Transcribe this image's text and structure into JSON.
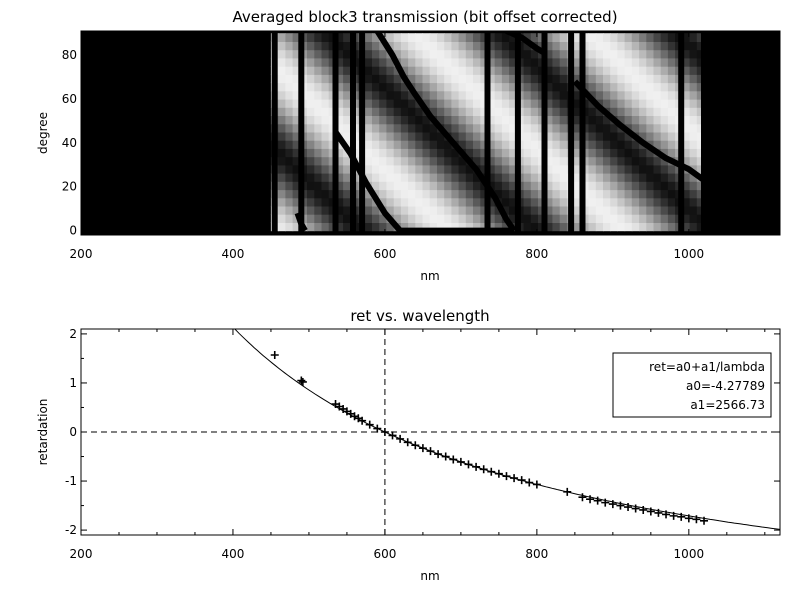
{
  "chart_data": [
    {
      "type": "heatmap",
      "title": "Averaged block3 transmission (bit offset corrected)",
      "xlabel": "nm",
      "ylabel": "degree",
      "xlim": [
        200,
        1120
      ],
      "ylim": [
        -2,
        91
      ],
      "x_ticks": [
        200,
        400,
        600,
        800,
        1000
      ],
      "y_ticks": [
        0,
        20,
        40,
        60,
        80
      ],
      "colormap": "grayscale",
      "data_wavelength_range": [
        450,
        1020
      ],
      "dark_band_positions_nm": [
        455,
        490,
        535,
        558,
        570,
        735,
        775,
        810,
        845,
        860,
        990,
        1020
      ],
      "fringe_tracks": [
        {
          "x": [
            535,
            555,
            575,
            600,
            620,
            645,
            670,
            700,
            730,
            770
          ],
          "y": [
            45,
            35,
            22,
            8,
            0,
            0,
            0,
            0,
            0,
            0
          ]
        },
        {
          "x": [
            590,
            610,
            625,
            640,
            660,
            690,
            720,
            745,
            760,
            770
          ],
          "y": [
            91,
            80,
            70,
            62,
            52,
            40,
            28,
            15,
            5,
            0
          ]
        },
        {
          "x": [
            760,
            780,
            800,
            810
          ],
          "y": [
            91,
            88,
            83,
            81
          ]
        },
        {
          "x": [
            850,
            880,
            910,
            940,
            970,
            1000,
            1020
          ],
          "y": [
            68,
            57,
            48,
            40,
            33,
            28,
            23
          ]
        },
        {
          "x": [
            485,
            490,
            495
          ],
          "y": [
            8,
            3,
            0
          ]
        }
      ]
    },
    {
      "type": "scatter",
      "title": "ret vs. wavelength",
      "xlabel": "nm",
      "ylabel": "retardation",
      "xlim": [
        200,
        1120
      ],
      "ylim": [
        -2.1,
        2.1
      ],
      "x_ticks": [
        200,
        400,
        600,
        800,
        1000
      ],
      "y_ticks": [
        -2,
        -1,
        0,
        1,
        2
      ],
      "reference_lines": {
        "y": 0,
        "x": 600
      },
      "fit": {
        "a0": -4.27789,
        "a1": 2566.73
      },
      "legend": {
        "lines": [
          "ret=a0+a1/lambda",
          "a0=-4.27789",
          "a1=2566.73"
        ],
        "placement": "top-right"
      },
      "points": {
        "x": [
          455,
          490,
          492,
          535,
          540,
          545,
          550,
          555,
          560,
          565,
          570,
          580,
          590,
          600,
          610,
          620,
          630,
          640,
          650,
          660,
          670,
          680,
          690,
          700,
          710,
          720,
          730,
          740,
          750,
          760,
          770,
          780,
          790,
          800,
          840,
          860,
          870,
          880,
          890,
          900,
          910,
          920,
          930,
          940,
          950,
          960,
          970,
          980,
          990,
          1000,
          1010,
          1020
        ],
        "y": [
          1.57,
          1.05,
          1.02,
          0.57,
          0.52,
          0.47,
          0.42,
          0.37,
          0.32,
          0.28,
          0.23,
          0.15,
          0.07,
          0.0,
          -0.07,
          -0.14,
          -0.21,
          -0.27,
          -0.33,
          -0.39,
          -0.45,
          -0.5,
          -0.56,
          -0.61,
          -0.66,
          -0.71,
          -0.76,
          -0.81,
          -0.85,
          -0.9,
          -0.94,
          -0.98,
          -1.03,
          -1.07,
          -1.22,
          -1.33,
          -1.37,
          -1.4,
          -1.44,
          -1.47,
          -1.5,
          -1.53,
          -1.56,
          -1.59,
          -1.62,
          -1.65,
          -1.68,
          -1.71,
          -1.73,
          -1.76,
          -1.78,
          -1.81
        ]
      }
    }
  ]
}
